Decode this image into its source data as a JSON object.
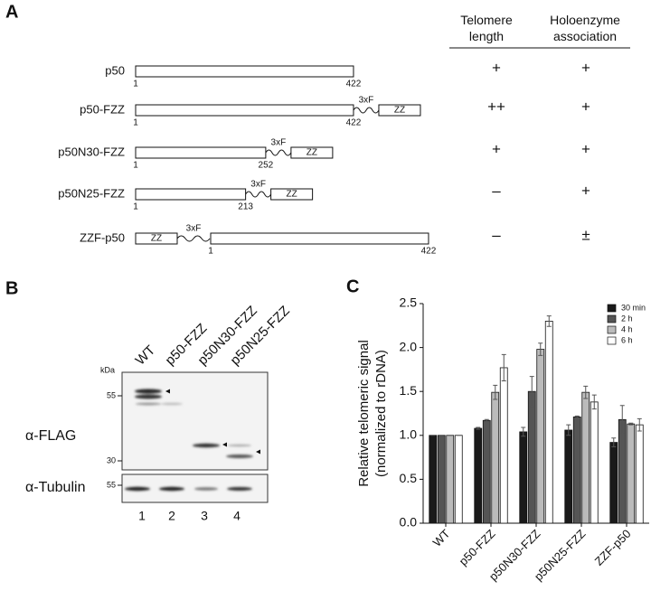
{
  "panel_labels": [
    "A",
    "B",
    "C"
  ],
  "constructs": {
    "headers": [
      "Telomere length",
      "Holoenzyme association"
    ],
    "rows": [
      {
        "name": "p50",
        "start": 1,
        "end": 422,
        "telomere": "+",
        "holoenzyme": "+"
      },
      {
        "name": "p50-FZZ",
        "start": 1,
        "end": 422,
        "linker": "3xF",
        "tag": "ZZ",
        "tag_side": "C",
        "telomere": "++",
        "holoenzyme": "+"
      },
      {
        "name": "p50N30-FZZ",
        "start": 1,
        "end": 252,
        "linker": "3xF",
        "tag": "ZZ",
        "tag_side": "C",
        "telomere": "+",
        "holoenzyme": "+"
      },
      {
        "name": "p50N25-FZZ",
        "start": 1,
        "end": 213,
        "linker": "3xF",
        "tag": "ZZ",
        "tag_side": "C",
        "telomere": "–",
        "holoenzyme": "+"
      },
      {
        "name": "ZZF-p50",
        "start": 1,
        "end": 422,
        "linker": "3xF",
        "tag": "ZZ",
        "tag_side": "N",
        "telomere": "–",
        "holoenzyme": "±"
      }
    ]
  },
  "blot": {
    "lanes": [
      "WT",
      "p50-FZZ",
      "p50N30-FZZ",
      "p50N25-FZZ"
    ],
    "lane_numbers": [
      "1",
      "2",
      "3",
      "4"
    ],
    "unit": "kDa",
    "markers": [
      "55",
      "30",
      "55"
    ],
    "antibodies": [
      "α-FLAG",
      "α-Tubulin"
    ]
  },
  "chart_data": {
    "type": "bar",
    "ylabel": "Relative telomeric signal",
    "ylabel2": "(normalized to rDNA)",
    "categories": [
      "WT",
      "p50-FZZ",
      "p50N30-FZZ",
      "p50N25-FZZ",
      "ZZF-p50"
    ],
    "series": [
      {
        "name": "30 min",
        "color": "#1a1a1a",
        "values": [
          1.0,
          1.08,
          1.04,
          1.06,
          0.92
        ],
        "errors": [
          0,
          0.01,
          0.05,
          0.06,
          0.05
        ]
      },
      {
        "name": "2 h",
        "color": "#555555",
        "values": [
          1.0,
          1.17,
          1.5,
          1.21,
          1.18
        ],
        "errors": [
          0,
          0.01,
          0.17,
          0.01,
          0.16
        ]
      },
      {
        "name": "4 h",
        "color": "#bbbbbb",
        "values": [
          1.0,
          1.49,
          1.98,
          1.49,
          1.13
        ],
        "errors": [
          0,
          0.08,
          0.07,
          0.07,
          0.01
        ]
      },
      {
        "name": "6 h",
        "color": "#ffffff",
        "values": [
          1.0,
          1.77,
          2.3,
          1.38,
          1.12
        ],
        "errors": [
          0,
          0.15,
          0.06,
          0.08,
          0.07
        ]
      }
    ],
    "ylim": [
      0,
      2.5
    ],
    "yticks": [
      {
        "value": 0,
        "label": "0.0"
      },
      {
        "value": 0.5,
        "label": "0.5"
      },
      {
        "value": 1,
        "label": "1.0"
      },
      {
        "value": 1.5,
        "label": "1.5"
      },
      {
        "value": 2,
        "label": "2.0"
      },
      {
        "value": 2.5,
        "label": "2.5"
      }
    ],
    "legend": "upper right"
  }
}
